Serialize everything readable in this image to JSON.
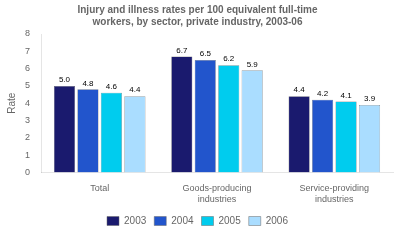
{
  "chart_data": {
    "type": "bar",
    "title": "Injury and illness rates per 100 equivalent full-time\nworkers, by sector, private industry, 2003-06",
    "categories": [
      "Total",
      "Goods-producing\nindustries",
      "Service-providing\nindustries"
    ],
    "series": [
      {
        "name": "2003",
        "color": "#1a1a6e",
        "values": [
          5.0,
          6.7,
          4.4
        ],
        "value_labels": [
          "5.0",
          "6.7",
          "4.4"
        ]
      },
      {
        "name": "2004",
        "color": "#2255cc",
        "values": [
          4.8,
          6.5,
          4.2
        ],
        "value_labels": [
          "4.8",
          "6.5",
          "4.2"
        ]
      },
      {
        "name": "2005",
        "color": "#00ccee",
        "values": [
          4.6,
          6.2,
          4.1
        ],
        "value_labels": [
          "4.6",
          "6.2",
          "4.1"
        ]
      },
      {
        "name": "2006",
        "color": "#aaddff",
        "values": [
          4.4,
          5.9,
          3.9
        ],
        "value_labels": [
          "4.4",
          "5.9",
          "3.9"
        ]
      }
    ],
    "ylabel": "Rate",
    "ylim": [
      0,
      8
    ],
    "yticks": [
      0,
      1,
      2,
      3,
      4,
      5,
      6,
      7,
      8
    ],
    "grid": false,
    "legend": "bottom",
    "data_labels": true
  }
}
